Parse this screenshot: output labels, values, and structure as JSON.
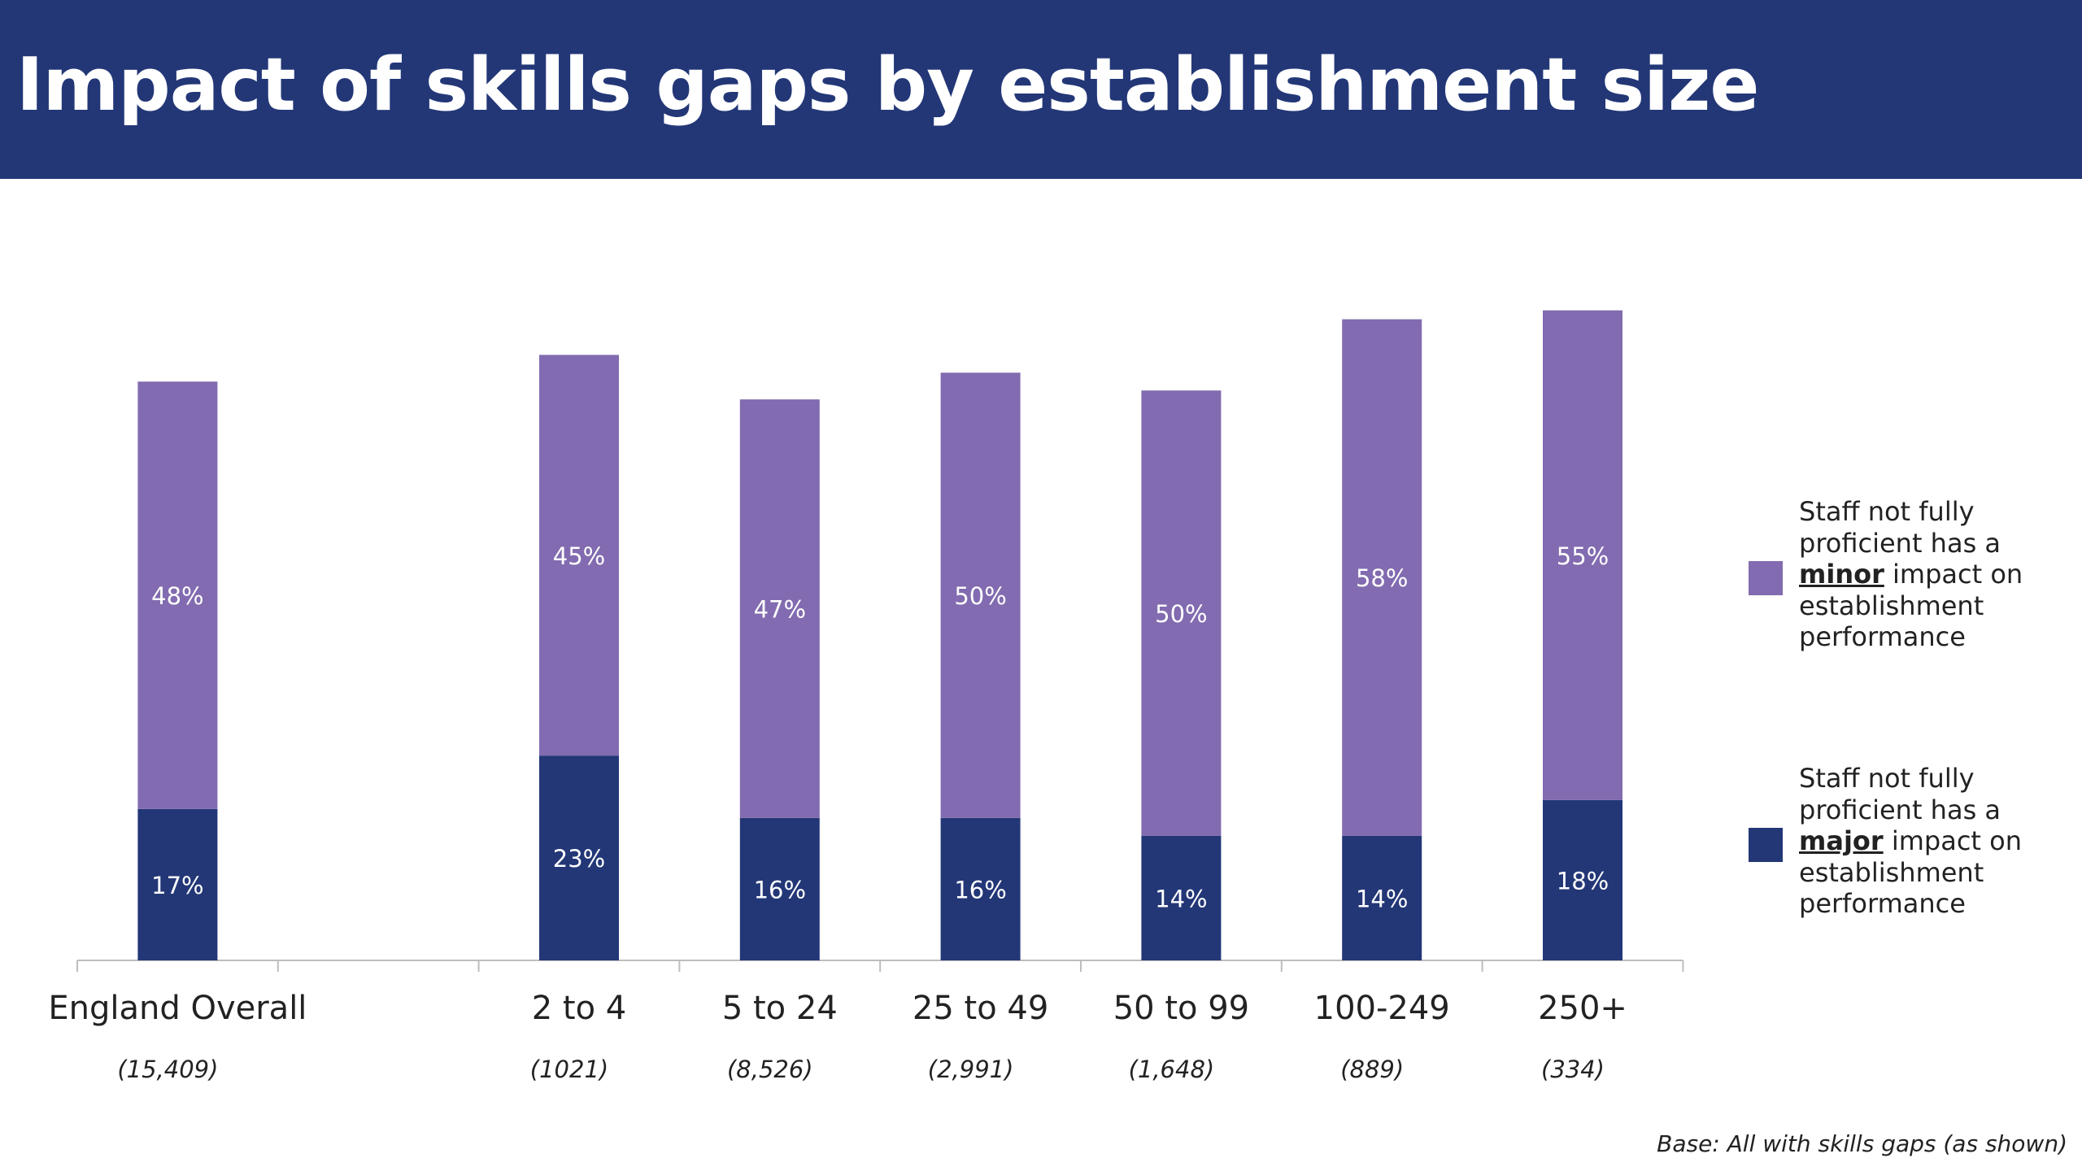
{
  "title": "Impact of skills gaps by establishment size",
  "base_note": "Base: All with skills gaps (as shown)",
  "colors": {
    "header": "#233777",
    "minor": "#826BB0",
    "major": "#233777"
  },
  "legend": {
    "minor": {
      "before": "Staff not fully proficient has a ",
      "emphasis": "minor",
      "after": " impact on establishment performance"
    },
    "major": {
      "before": "Staff not fully proficient has a ",
      "emphasis": "major",
      "after": " impact on establishment performance"
    }
  },
  "chart_data": {
    "type": "bar",
    "stacked": true,
    "categories": [
      "England Overall",
      "",
      "2 to 4",
      "5 to 24",
      "25 to 49",
      "50 to 99",
      "100-249",
      "250+"
    ],
    "base_sizes": [
      "(15,409)",
      "",
      "(1021)",
      "(8,526)",
      "(2,991)",
      "(1,648)",
      "(889)",
      "(334)"
    ],
    "series": [
      {
        "name": "Staff not fully proficient has a major impact on establishment performance",
        "values": [
          17,
          null,
          23,
          16,
          16,
          14,
          14,
          18
        ],
        "labels": [
          "17%",
          "",
          "23%",
          "16%",
          "16%",
          "14%",
          "14%",
          "18%"
        ]
      },
      {
        "name": "Staff not fully proficient has a minor impact on establishment performance",
        "values": [
          48,
          null,
          45,
          47,
          50,
          50,
          58,
          55
        ],
        "labels": [
          "48%",
          "",
          "45%",
          "47%",
          "50%",
          "50%",
          "58%",
          "55%"
        ]
      }
    ],
    "ylim": [
      0,
      80
    ],
    "grid": false,
    "legend_position": "right"
  }
}
